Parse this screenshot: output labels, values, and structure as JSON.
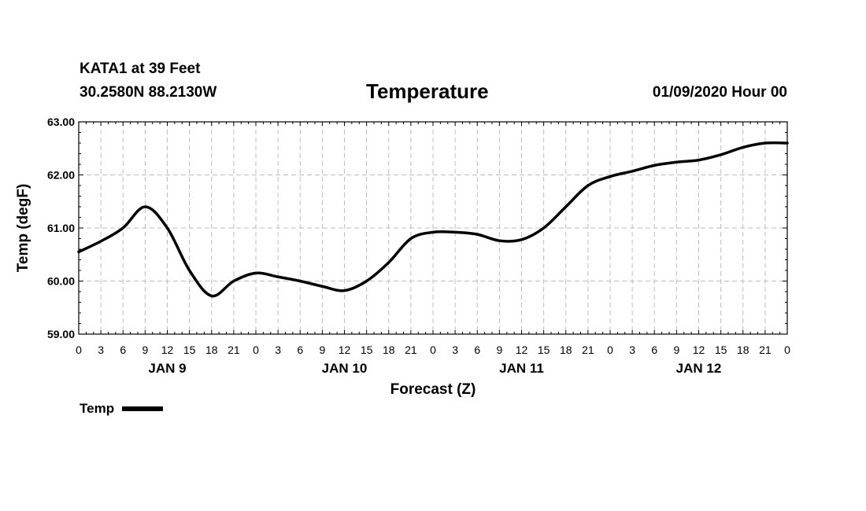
{
  "header": {
    "station": "KATA1 at 39 Feet",
    "coords": "30.2580N 88.2130W",
    "title": "Temperature",
    "datestamp": "01/09/2020 Hour 00"
  },
  "legend": {
    "label": "Temp"
  },
  "chart_data": {
    "type": "line",
    "title": "Temperature",
    "xlabel": "Forecast (Z)",
    "ylabel": "Temp (degF)",
    "ylim": [
      59.0,
      63.0
    ],
    "yticks": [
      "59.00",
      "60.00",
      "61.00",
      "62.00",
      "63.00"
    ],
    "xlim_hours": [
      0,
      96
    ],
    "xtick_labels": [
      "0",
      "3",
      "6",
      "9",
      "12",
      "15",
      "18",
      "21",
      "0",
      "3",
      "6",
      "9",
      "12",
      "15",
      "18",
      "21",
      "0",
      "3",
      "6",
      "9",
      "12",
      "15",
      "18",
      "21",
      "0",
      "3",
      "6",
      "9",
      "12",
      "15",
      "18",
      "21",
      "0"
    ],
    "day_labels": [
      {
        "label": "JAN 9",
        "hour": 12
      },
      {
        "label": "JAN 10",
        "hour": 36
      },
      {
        "label": "JAN 11",
        "hour": 60
      },
      {
        "label": "JAN 12",
        "hour": 84
      }
    ],
    "grid": true,
    "legend": "bottom-left",
    "series": [
      {
        "name": "Temp",
        "color": "#000000",
        "x": [
          0,
          3,
          6,
          9,
          12,
          15,
          18,
          21,
          24,
          27,
          30,
          33,
          36,
          39,
          42,
          45,
          48,
          51,
          54,
          57,
          60,
          63,
          66,
          69,
          72,
          75,
          78,
          81,
          84,
          87,
          90,
          93,
          96
        ],
        "values": [
          60.55,
          60.75,
          61.0,
          61.4,
          61.0,
          60.2,
          59.72,
          60.0,
          60.15,
          60.08,
          60.0,
          59.9,
          59.82,
          60.0,
          60.35,
          60.8,
          60.92,
          60.92,
          60.88,
          60.76,
          60.78,
          61.0,
          61.4,
          61.8,
          61.97,
          62.07,
          62.18,
          62.24,
          62.28,
          62.38,
          62.52,
          62.6,
          62.6
        ]
      }
    ]
  }
}
